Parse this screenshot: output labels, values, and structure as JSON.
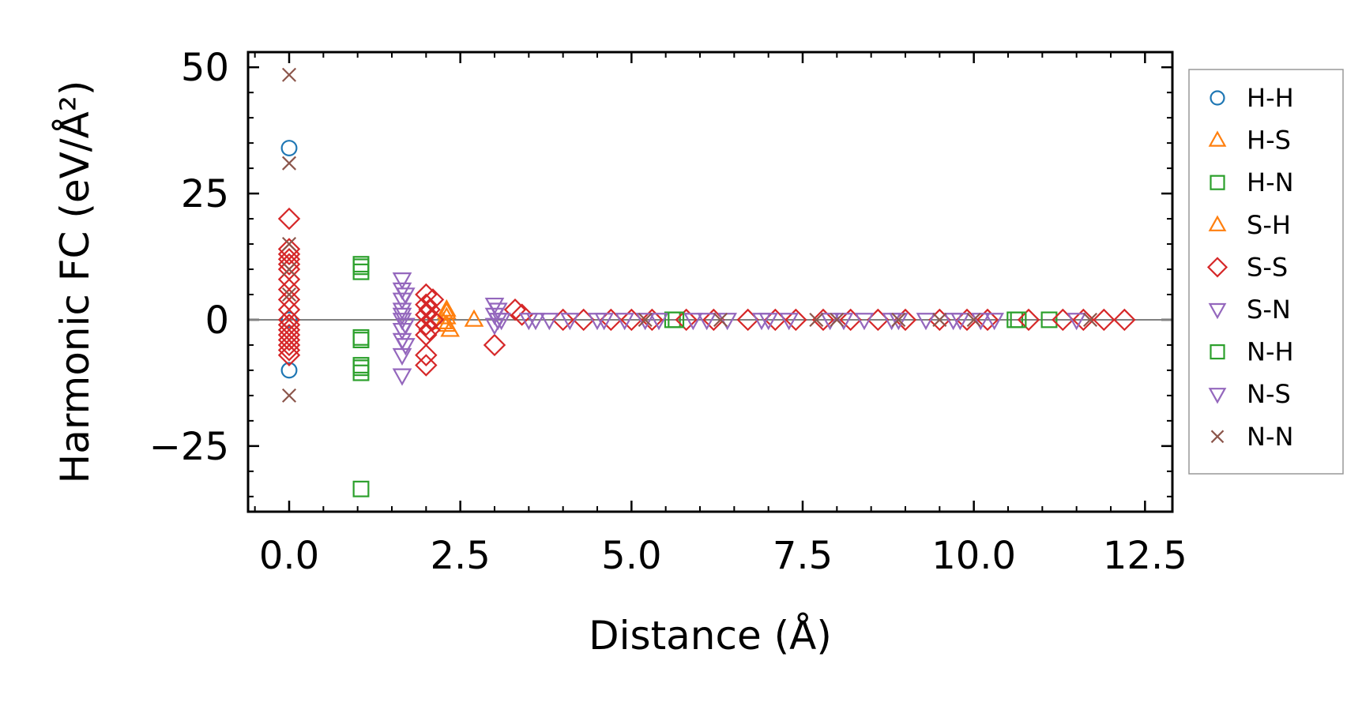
{
  "chart_data": {
    "type": "scatter",
    "title": "",
    "xlabel": "Distance (Å)",
    "ylabel": "Harmonic FC (eV/Å²)",
    "xlim": [
      -0.6,
      12.9
    ],
    "ylim": [
      -38,
      53
    ],
    "xticks": [
      0.0,
      2.5,
      5.0,
      7.5,
      10.0,
      12.5
    ],
    "xtick_labels": [
      "0.0",
      "2.5",
      "5.0",
      "7.5",
      "10.0",
      "12.5"
    ],
    "yticks": [
      -25,
      0,
      25,
      50
    ],
    "ytick_labels": [
      "−25",
      "0",
      "25",
      "50"
    ],
    "reference_line_y": 0,
    "legend_position": "outside-right",
    "series": [
      {
        "name": "H-H",
        "marker": "circle",
        "color": "#1f77b4",
        "x": [
          0,
          0,
          0
        ],
        "y": [
          34,
          -10,
          0
        ]
      },
      {
        "name": "H-S",
        "marker": "triangle-up",
        "color": "#ff7f0e",
        "x": [
          2.3,
          2.3,
          2.3,
          2.35,
          2.7
        ],
        "y": [
          2,
          0.5,
          -1,
          -2,
          0
        ]
      },
      {
        "name": "H-N",
        "marker": "square",
        "color": "#2ca02c",
        "x": [
          1.05,
          1.05,
          1.05,
          1.05,
          1.05,
          1.05,
          1.05,
          5.6,
          10.6,
          11.1
        ],
        "y": [
          10.5,
          9.5,
          -3.5,
          -9,
          -10.5,
          -33.5,
          -4,
          0,
          0,
          0
        ]
      },
      {
        "name": "S-H",
        "marker": "triangle-up",
        "color": "#ff7f0e",
        "x": [
          2.3,
          2.25
        ],
        "y": [
          1.5,
          -0.5
        ]
      },
      {
        "name": "S-S",
        "marker": "diamond",
        "color": "#d62728",
        "x": [
          0,
          0,
          0,
          0,
          0,
          0,
          0,
          0,
          0,
          0,
          0,
          0,
          0,
          0,
          0,
          0,
          0,
          0,
          2.0,
          2.0,
          2.0,
          2.0,
          2.0,
          2.05,
          2.05,
          2.1,
          2.1,
          2.0,
          2.0,
          3.0,
          3.3,
          3.4,
          4.0,
          4.3,
          4.7,
          5.0,
          5.3,
          5.8,
          6.2,
          6.7,
          7.1,
          7.4,
          7.8,
          8.2,
          8.6,
          9.0,
          9.5,
          9.9,
          10.2,
          10.8,
          11.3,
          11.6,
          11.9,
          12.2
        ],
        "y": [
          20,
          14,
          12,
          10,
          8,
          6,
          4,
          2,
          0,
          -1,
          -2,
          -3,
          -4,
          -5,
          -6,
          -7,
          11,
          13,
          5,
          3,
          1,
          -1,
          -3,
          2,
          -2,
          0,
          4,
          -7,
          -9,
          -5,
          2,
          1,
          0,
          0,
          0,
          0,
          0,
          0,
          0,
          0,
          0,
          0,
          0,
          0,
          0,
          0,
          0,
          0,
          0,
          0,
          0,
          0,
          0,
          0
        ]
      },
      {
        "name": "S-N",
        "marker": "triangle-down",
        "color": "#9467bd",
        "x": [
          1.65,
          1.65,
          1.65,
          1.65,
          1.65,
          1.65,
          1.65,
          1.65,
          1.65,
          1.65,
          3.0,
          3.0,
          3.0,
          3.05,
          3.05,
          3.5,
          3.8,
          4.1,
          4.5,
          4.9,
          5.4,
          5.9,
          6.4,
          6.9,
          7.3,
          7.9,
          8.4,
          8.8,
          9.3,
          9.8,
          10.3,
          11.5
        ],
        "y": [
          8,
          6,
          4,
          2,
          0,
          -2,
          -4,
          -7,
          -11,
          1,
          3,
          1,
          -1,
          2,
          0,
          0,
          0,
          0,
          0,
          0,
          0,
          0,
          0,
          0,
          0,
          0,
          0,
          0,
          0,
          0,
          0,
          0
        ]
      },
      {
        "name": "N-H",
        "marker": "square",
        "color": "#2ca02c",
        "x": [
          1.05,
          1.05,
          5.65,
          10.65
        ],
        "y": [
          11,
          -9.5,
          0,
          0
        ]
      },
      {
        "name": "N-S",
        "marker": "triangle-down",
        "color": "#9467bd",
        "x": [
          1.7,
          1.7,
          1.7,
          3.1,
          3.6,
          4.6,
          5.2,
          6.1,
          7.0,
          8.1,
          8.9,
          9.7,
          10.1
        ],
        "y": [
          5,
          -1,
          -5,
          0,
          0,
          0,
          0,
          0,
          0,
          0,
          0,
          0,
          0
        ]
      },
      {
        "name": "N-N",
        "marker": "x",
        "color": "#8c564b",
        "x": [
          0,
          0,
          0,
          0,
          0,
          0,
          5.2,
          6.3,
          7.7,
          8.0,
          8.9,
          9.5,
          10.0,
          11.7
        ],
        "y": [
          48.5,
          31,
          15,
          10,
          -15,
          5,
          0,
          0,
          0,
          0,
          0,
          0,
          0,
          0
        ]
      }
    ]
  }
}
